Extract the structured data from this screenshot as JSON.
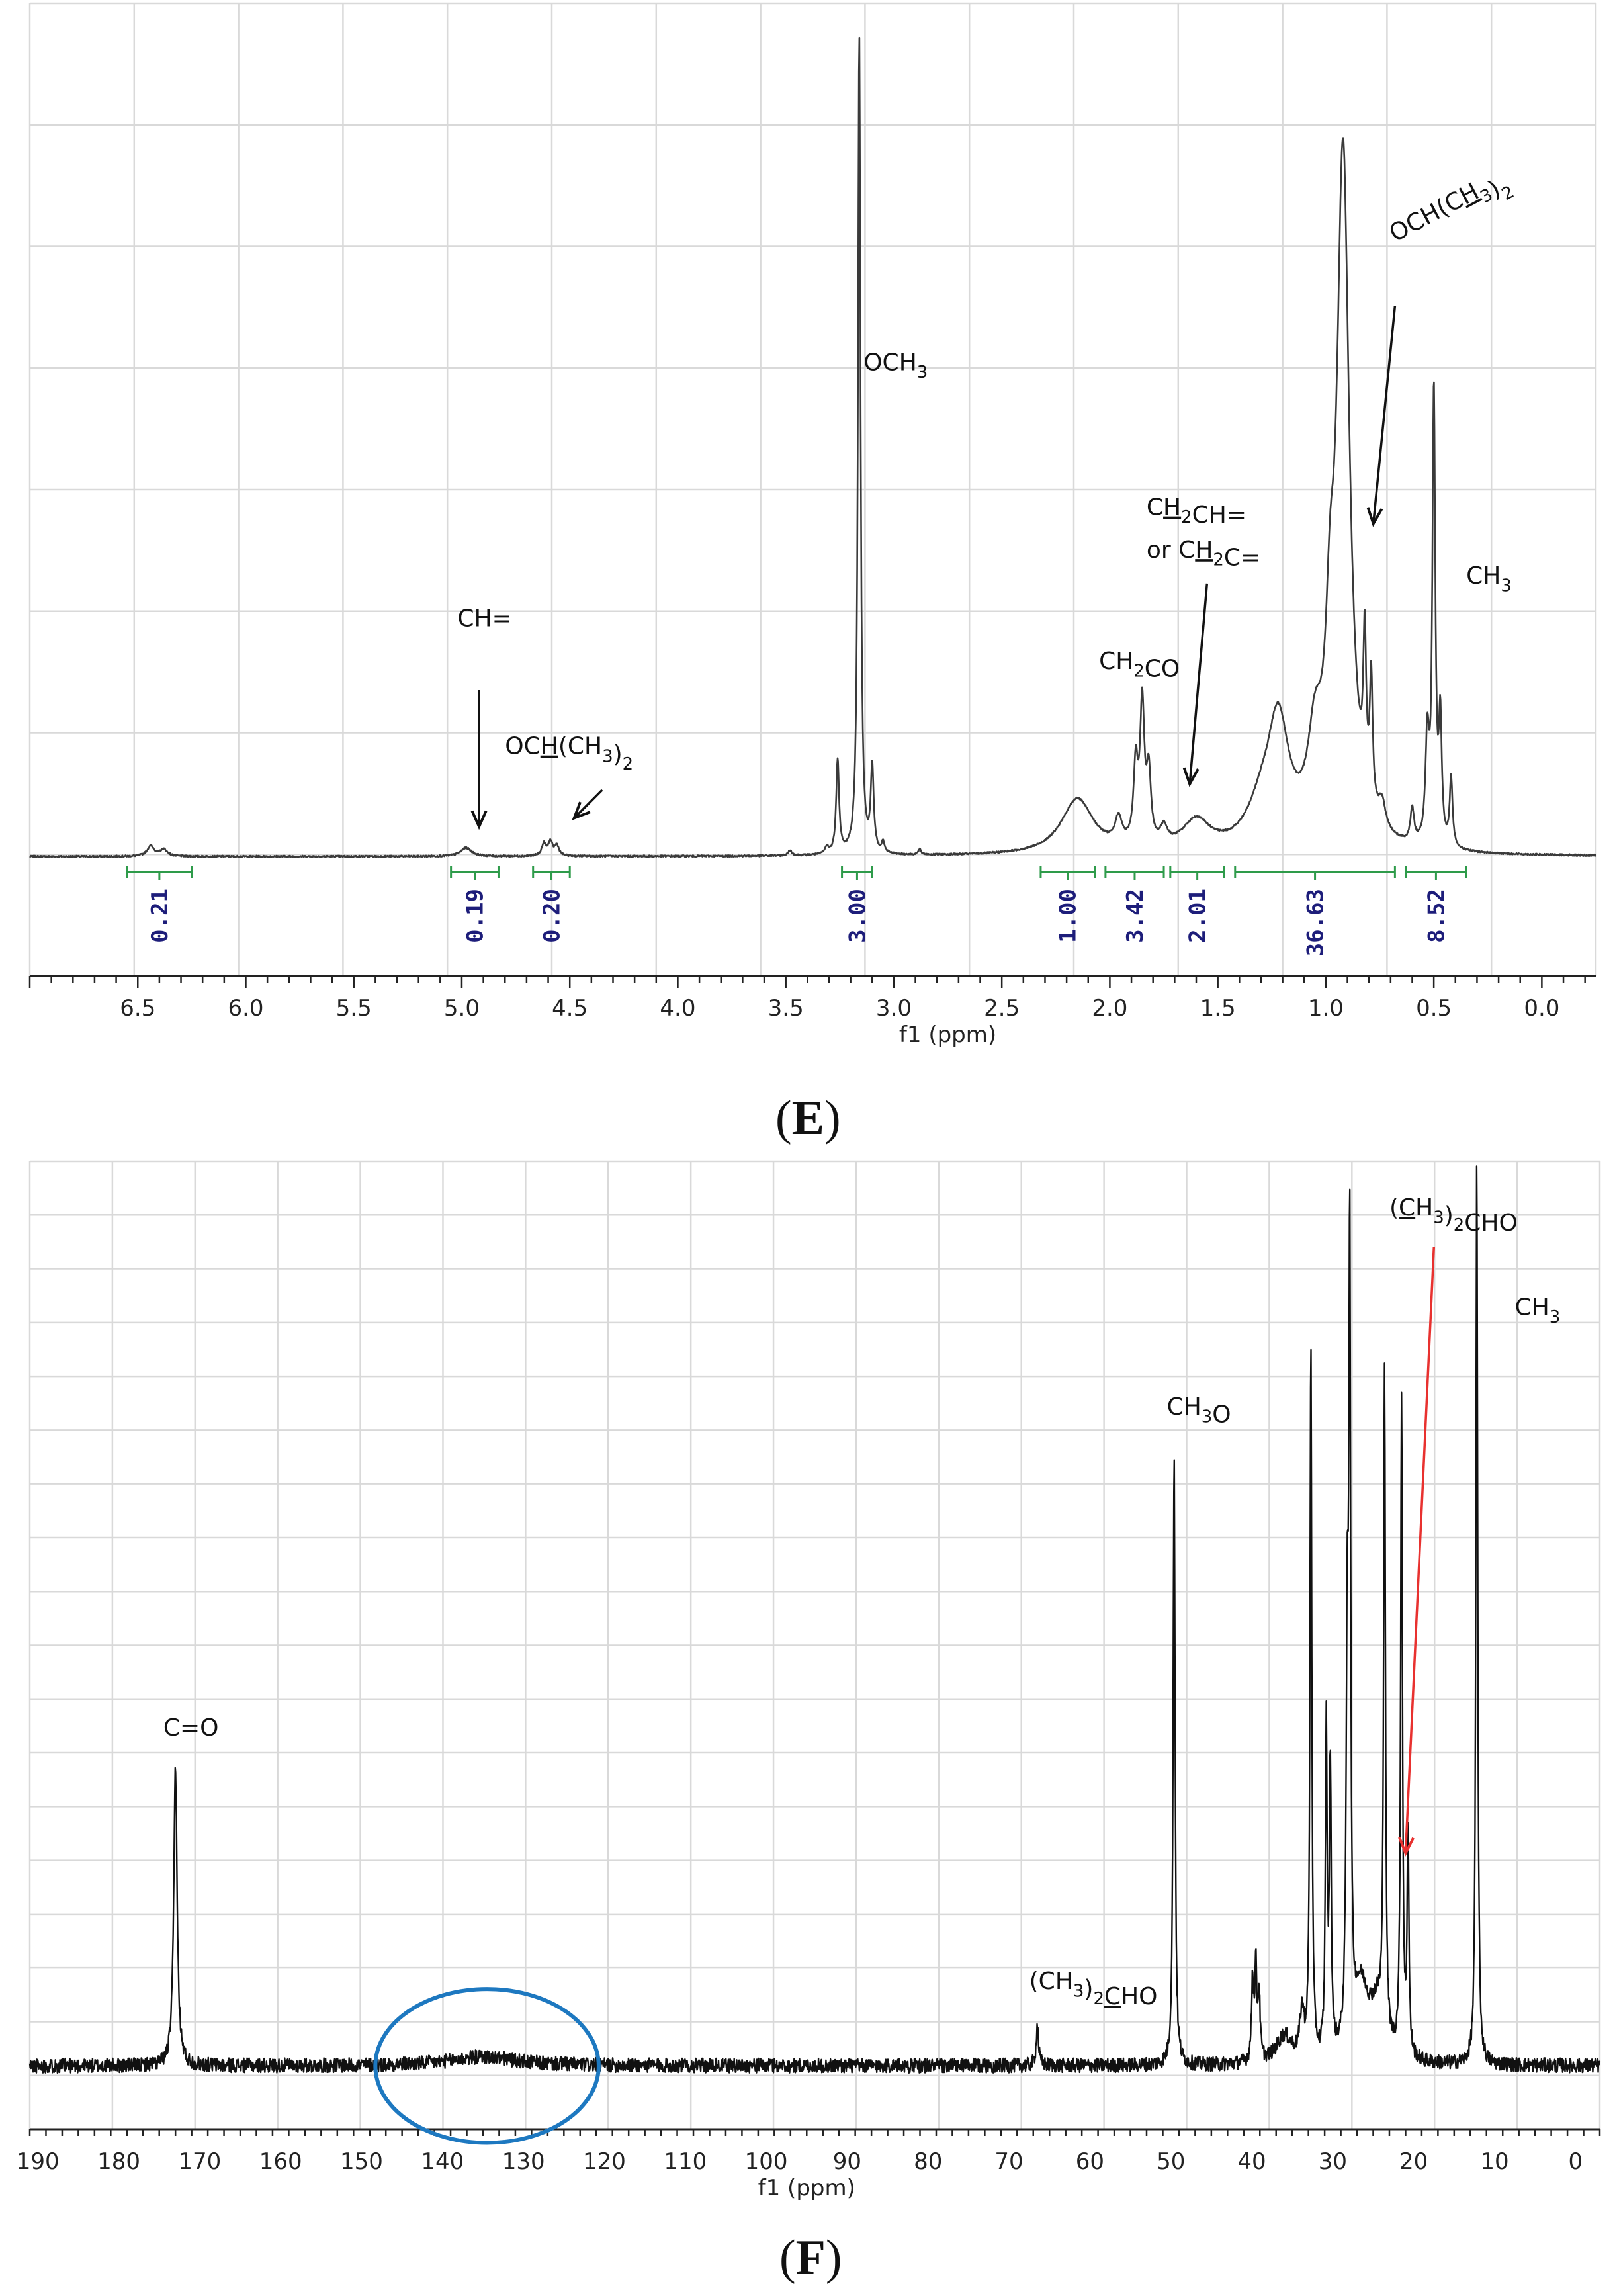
{
  "panel_labels": {
    "e": {
      "open": "(",
      "letter": "E",
      "close": ")"
    },
    "f": {
      "open": "(",
      "letter": "F",
      "close": ")"
    }
  },
  "colors": {
    "spectrum_e": "#3a3a3a",
    "spectrum_f": "#111111",
    "grid": "#d9d9d9",
    "integral": "#2e9b4a",
    "integral_value": "#1d1d7a",
    "red_arrow": "#e8312f",
    "blue_ellipse": "#1d78c0"
  },
  "chart_data": [
    {
      "type": "line",
      "spectrum": "1H NMR",
      "xlabel": "f1 (ppm)",
      "xlim": [
        7.0,
        -0.25
      ],
      "x_reversed": true,
      "xticks": [
        "6.5",
        "6.0",
        "5.5",
        "5.0",
        "4.5",
        "4.0",
        "3.5",
        "3.0",
        "2.5",
        "2.0",
        "1.5",
        "1.0",
        "0.5",
        "0.0"
      ],
      "grid": true,
      "peaks": [
        {
          "ppm": 6.44,
          "height": 0.012,
          "width": 0.02
        },
        {
          "ppm": 6.38,
          "height": 0.008,
          "width": 0.02
        },
        {
          "ppm": 4.98,
          "height": 0.01,
          "width": 0.03
        },
        {
          "ppm": 4.62,
          "height": 0.014,
          "width": 0.012
        },
        {
          "ppm": 4.59,
          "height": 0.016,
          "width": 0.012
        },
        {
          "ppm": 4.56,
          "height": 0.012,
          "width": 0.012
        },
        {
          "ppm": 3.48,
          "height": 0.006,
          "width": 0.01
        },
        {
          "ppm": 3.31,
          "height": 0.008,
          "width": 0.01
        },
        {
          "ppm": 3.26,
          "height": 0.11,
          "width": 0.008
        },
        {
          "ppm": 3.16,
          "height": 0.96,
          "width": 0.007
        },
        {
          "ppm": 3.1,
          "height": 0.1,
          "width": 0.008
        },
        {
          "ppm": 3.05,
          "height": 0.012,
          "width": 0.008
        },
        {
          "ppm": 2.88,
          "height": 0.006,
          "width": 0.008
        },
        {
          "ppm": 2.15,
          "height": 0.065,
          "width": 0.09
        },
        {
          "ppm": 1.96,
          "height": 0.03,
          "width": 0.02
        },
        {
          "ppm": 1.88,
          "height": 0.09,
          "width": 0.012
        },
        {
          "ppm": 1.85,
          "height": 0.16,
          "width": 0.012
        },
        {
          "ppm": 1.82,
          "height": 0.08,
          "width": 0.012
        },
        {
          "ppm": 1.75,
          "height": 0.02,
          "width": 0.02
        },
        {
          "ppm": 1.6,
          "height": 0.035,
          "width": 0.08
        },
        {
          "ppm": 1.22,
          "height": 0.14,
          "width": 0.06
        },
        {
          "ppm": 1.3,
          "height": 0.04,
          "width": 0.08
        },
        {
          "ppm": 1.05,
          "height": 0.1,
          "width": 0.04
        },
        {
          "ppm": 0.98,
          "height": 0.16,
          "width": 0.025
        },
        {
          "ppm": 0.92,
          "height": 0.8,
          "width": 0.035
        },
        {
          "ppm": 0.82,
          "height": 0.18,
          "width": 0.008
        },
        {
          "ppm": 0.79,
          "height": 0.15,
          "width": 0.008
        },
        {
          "ppm": 0.74,
          "height": 0.03,
          "width": 0.02
        },
        {
          "ppm": 0.6,
          "height": 0.04,
          "width": 0.01
        },
        {
          "ppm": 0.53,
          "height": 0.12,
          "width": 0.01
        },
        {
          "ppm": 0.5,
          "height": 0.53,
          "width": 0.008
        },
        {
          "ppm": 0.47,
          "height": 0.14,
          "width": 0.008
        },
        {
          "ppm": 0.42,
          "height": 0.08,
          "width": 0.008
        }
      ],
      "ylim": [
        -0.14,
        1.0
      ],
      "integrals": [
        {
          "value": "0.21",
          "from": 6.55,
          "to": 6.25
        },
        {
          "value": "0.19",
          "from": 5.05,
          "to": 4.83
        },
        {
          "value": "0.20",
          "from": 4.67,
          "to": 4.5
        },
        {
          "value": "3.00",
          "from": 3.24,
          "to": 3.1
        },
        {
          "value": "1.00",
          "from": 2.32,
          "to": 2.07
        },
        {
          "value": "3.42",
          "from": 2.02,
          "to": 1.75
        },
        {
          "value": "2.01",
          "from": 1.72,
          "to": 1.47
        },
        {
          "value": "36.63",
          "from": 1.42,
          "to": 0.68
        },
        {
          "value": "8.52",
          "from": 0.63,
          "to": 0.35
        }
      ],
      "annotations": [
        {
          "id": "och3",
          "parts": [
            [
              "OCH",
              ""
            ],
            [
              "3",
              "sub"
            ]
          ],
          "x": 3.14,
          "y": 0.57
        },
        {
          "id": "ch-eq",
          "parts": [
            [
              "CH=",
              ""
            ]
          ],
          "x": 5.02,
          "y": 0.27
        },
        {
          "id": "och-ch3-2-h",
          "parts": [
            [
              "OC",
              ""
            ],
            [
              "H",
              "u"
            ],
            [
              "(CH",
              ""
            ],
            [
              "3",
              "sub"
            ],
            [
              ")",
              ""
            ],
            [
              "2",
              "sub"
            ]
          ],
          "x": 4.8,
          "y": 0.12
        },
        {
          "id": "ch2co",
          "parts": [
            [
              "CH",
              ""
            ],
            [
              "2",
              "sub"
            ],
            [
              "CO",
              ""
            ]
          ],
          "x": 2.05,
          "y": 0.22
        },
        {
          "id": "ch2ch",
          "parts": [
            [
              "C",
              ""
            ],
            [
              "H",
              "u"
            ],
            [
              "2",
              "sub"
            ],
            [
              "CH=",
              ""
            ]
          ],
          "x": 1.83,
          "y": 0.4
        },
        {
          "id": "or-ch2c",
          "parts": [
            [
              "or C",
              ""
            ],
            [
              "H",
              "u"
            ],
            [
              "2",
              "sub"
            ],
            [
              "C=",
              ""
            ]
          ],
          "x": 1.83,
          "y": 0.35
        },
        {
          "id": "ch3",
          "parts": [
            [
              "CH",
              ""
            ],
            [
              "3",
              "sub"
            ]
          ],
          "x": 0.35,
          "y": 0.32
        }
      ],
      "rotated_annotation": {
        "parts": [
          [
            "OCH(C",
            ""
          ],
          [
            "H",
            "u"
          ],
          [
            "3",
            "sub"
          ],
          [
            ")",
            ""
          ],
          [
            "2",
            "sub"
          ]
        ],
        "x": 0.68,
        "y": 0.72,
        "angle": -28
      },
      "arrows": [
        {
          "x1": 4.92,
          "y1": 0.195,
          "x2": 4.92,
          "y2": 0.035
        },
        {
          "x1": 4.35,
          "y1": 0.078,
          "x2": 4.48,
          "y2": 0.045
        },
        {
          "x1": 1.55,
          "y1": 0.32,
          "x2": 1.63,
          "y2": 0.085
        },
        {
          "x1": 0.68,
          "y1": 0.645,
          "x2": 0.78,
          "y2": 0.39
        }
      ]
    },
    {
      "type": "line",
      "spectrum": "13C NMR",
      "xlabel": "f1 (ppm)",
      "xlim": [
        191,
        -3
      ],
      "x_reversed": true,
      "xticks": [
        "190",
        "180",
        "170",
        "160",
        "150",
        "140",
        "130",
        "120",
        "110",
        "100",
        "90",
        "80",
        "70",
        "60",
        "50",
        "40",
        "30",
        "20",
        "10",
        "0"
      ],
      "grid": true,
      "ylim": [
        -0.07,
        1.0
      ],
      "peaks": [
        {
          "ppm": 173.0,
          "height": 0.33,
          "width": 0.25
        },
        {
          "ppm": 135.0,
          "height": 0.01,
          "width": 5.0
        },
        {
          "ppm": 66.5,
          "height": 0.045,
          "width": 0.18
        },
        {
          "ppm": 49.6,
          "height": 0.68,
          "width": 0.14
        },
        {
          "ppm": 39.9,
          "height": 0.09,
          "width": 0.15
        },
        {
          "ppm": 39.5,
          "height": 0.1,
          "width": 0.15
        },
        {
          "ppm": 39.1,
          "height": 0.07,
          "width": 0.15
        },
        {
          "ppm": 36.0,
          "height": 0.03,
          "width": 1.2
        },
        {
          "ppm": 33.8,
          "height": 0.05,
          "width": 0.3
        },
        {
          "ppm": 32.7,
          "height": 0.79,
          "width": 0.13
        },
        {
          "ppm": 30.8,
          "height": 0.36,
          "width": 0.13
        },
        {
          "ppm": 30.3,
          "height": 0.32,
          "width": 0.13
        },
        {
          "ppm": 28.2,
          "height": 0.42,
          "width": 0.16
        },
        {
          "ppm": 27.9,
          "height": 0.85,
          "width": 0.13
        },
        {
          "ppm": 26.5,
          "height": 0.08,
          "width": 1.2
        },
        {
          "ppm": 24.5,
          "height": 0.05,
          "width": 1.0
        },
        {
          "ppm": 23.6,
          "height": 0.74,
          "width": 0.13
        },
        {
          "ppm": 21.5,
          "height": 0.73,
          "width": 0.13
        },
        {
          "ppm": 20.7,
          "height": 0.25,
          "width": 0.13
        },
        {
          "ppm": 12.2,
          "height": 1.0,
          "width": 0.13
        }
      ],
      "annotations": [
        {
          "id": "c-eq-o",
          "parts": [
            [
              "C=O",
              ""
            ]
          ],
          "x": 174.5,
          "y": 0.365
        },
        {
          "id": "ch3o",
          "parts": [
            [
              "CH",
              ""
            ],
            [
              "3",
              "sub"
            ],
            [
              "O",
              ""
            ]
          ],
          "x": 50.5,
          "y": 0.72
        },
        {
          "id": "ch3-2cho-c",
          "parts": [
            [
              "(CH",
              ""
            ],
            [
              "3",
              "sub"
            ],
            [
              ")",
              ""
            ],
            [
              "2",
              "sub"
            ],
            [
              "C",
              "u"
            ],
            [
              "HO",
              ""
            ]
          ],
          "x": 67.5,
          "y": 0.085
        },
        {
          "id": "ch3-2cho-top",
          "parts": [
            [
              "(",
              ""
            ],
            [
              "C",
              "u"
            ],
            [
              "H",
              ""
            ],
            [
              "3",
              "sub"
            ],
            [
              ")",
              ""
            ],
            [
              "2",
              "sub"
            ],
            [
              "CHO",
              ""
            ]
          ],
          "x": 23.0,
          "y": 0.94
        },
        {
          "id": "ch3-f",
          "parts": [
            [
              "CH",
              ""
            ],
            [
              "3",
              "sub"
            ]
          ],
          "x": 7.5,
          "y": 0.83
        }
      ],
      "red_arrow": {
        "x1": 17.5,
        "y1": 0.905,
        "x2": 21.0,
        "y2": 0.235
      },
      "ellipse": {
        "cx": 134.5,
        "cy": 0.0,
        "rx": 13.8,
        "ry": 0.085
      }
    }
  ]
}
